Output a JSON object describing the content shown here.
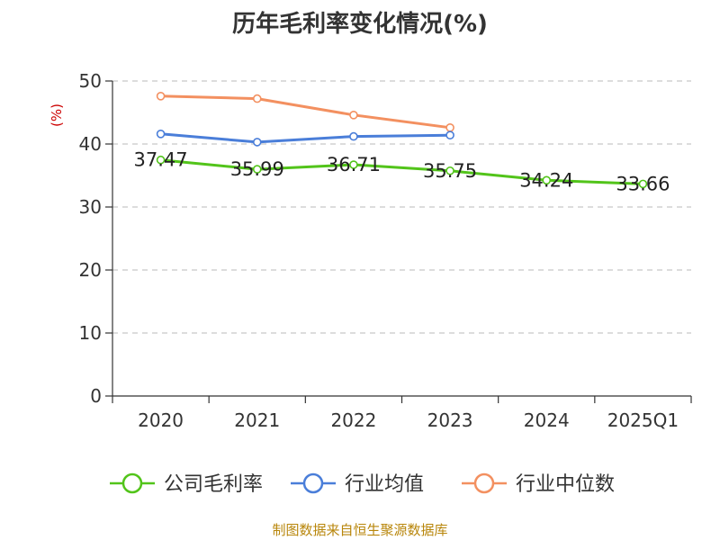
{
  "chart_data": {
    "type": "line",
    "title": "历年毛利率变化情况(%)",
    "unit_label": "(%)",
    "categories": [
      "2020",
      "2021",
      "2022",
      "2023",
      "2024",
      "2025Q1"
    ],
    "ylim": [
      0,
      50
    ],
    "yticks": [
      0,
      10,
      20,
      30,
      40,
      50
    ],
    "grid": true,
    "legend_position": "bottom",
    "series": [
      {
        "name": "公司毛利率",
        "color": "#52c41a",
        "values": [
          37.47,
          35.99,
          36.71,
          35.75,
          34.24,
          33.66
        ],
        "show_labels": true
      },
      {
        "name": "行业均值",
        "color": "#4a7ed9",
        "values": [
          41.6,
          40.3,
          41.2,
          41.4,
          null,
          null
        ],
        "show_labels": false
      },
      {
        "name": "行业中位数",
        "color": "#f39060",
        "values": [
          47.6,
          47.2,
          44.6,
          42.6,
          null,
          null
        ],
        "show_labels": false
      }
    ]
  },
  "source": "制图数据来自恒生聚源数据库"
}
